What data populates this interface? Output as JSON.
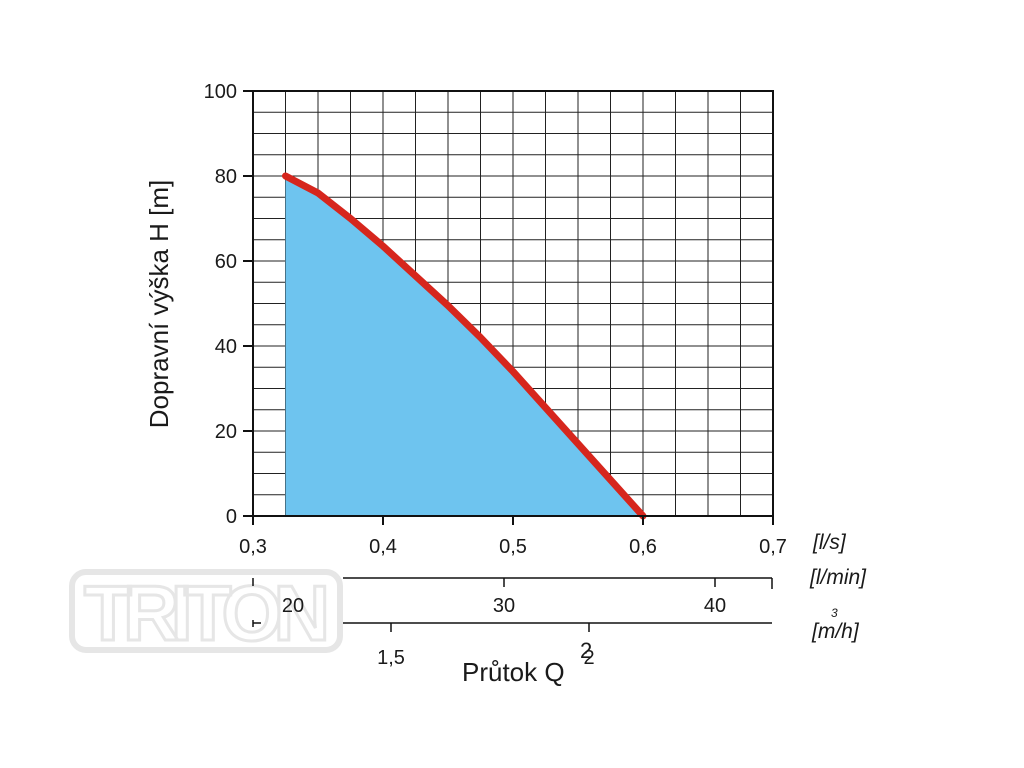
{
  "watermark": "TRITON",
  "colors": {
    "curve": "#d6261d",
    "area": "#6ec4ef",
    "grid": "#222222",
    "axis": "#111111"
  },
  "chart_data": {
    "type": "area",
    "title": "",
    "ylabel": "Dopravní výška H [m]",
    "xlabel": "Průtok Q",
    "xlabel_superscript": "2",
    "ylim": [
      0,
      100
    ],
    "yticks": [
      0,
      20,
      40,
      60,
      80,
      100
    ],
    "xlim": [
      0.3,
      0.7
    ],
    "xticks": [
      {
        "value": 0.3,
        "label": "0,3"
      },
      {
        "value": 0.4,
        "label": "0,4"
      },
      {
        "value": 0.5,
        "label": "0,5"
      },
      {
        "value": 0.6,
        "label": "0,6"
      },
      {
        "value": 0.7,
        "label": "0,7"
      }
    ],
    "x_unit": "[l/s]",
    "grid": true,
    "series": [
      {
        "x": [
          0.325,
          0.35,
          0.375,
          0.4,
          0.425,
          0.45,
          0.475,
          0.5,
          0.525,
          0.55,
          0.575,
          0.6
        ],
        "y": [
          80,
          76,
          70,
          63.5,
          56.5,
          49.5,
          42,
          34,
          25.5,
          17,
          8.5,
          0
        ]
      }
    ],
    "secondary_axes": [
      {
        "unit": "[l/min]",
        "ticks": [
          {
            "value": 20,
            "label": "20"
          },
          {
            "value": 30,
            "label": "30"
          },
          {
            "value": 40,
            "label": "40"
          }
        ]
      },
      {
        "unit": "[m/h]",
        "unit_superscript": "3",
        "ticks": [
          {
            "value": 1.5,
            "label": "1,5"
          },
          {
            "value": 2,
            "label": "2"
          }
        ]
      }
    ]
  }
}
